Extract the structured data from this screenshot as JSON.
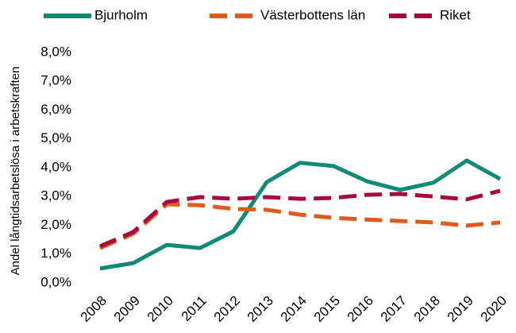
{
  "chart_data": {
    "type": "line",
    "y_label": "Andel långtidsarbetslösa i arbetskraften",
    "categories": [
      "2008",
      "2009",
      "2010",
      "2011",
      "2012",
      "2013",
      "2014",
      "2015",
      "2016",
      "2017",
      "2018",
      "2019",
      "2020"
    ],
    "series": [
      {
        "name": "Bjurholm",
        "color": "#118a76",
        "dash": false,
        "values": [
          0.5,
          0.69,
          1.32,
          1.21,
          1.79,
          3.5,
          4.17,
          4.06,
          3.53,
          3.23,
          3.48,
          4.25,
          3.61
        ]
      },
      {
        "name": "Västerbottens län",
        "color": "#e05a1a",
        "dash": true,
        "values": [
          1.21,
          1.71,
          2.73,
          2.7,
          2.57,
          2.54,
          2.37,
          2.26,
          2.2,
          2.15,
          2.1,
          1.99,
          2.1
        ]
      },
      {
        "name": "Riket",
        "color": "#a8083f",
        "dash": true,
        "values": [
          1.27,
          1.77,
          2.81,
          2.98,
          2.92,
          2.98,
          2.92,
          2.95,
          3.06,
          3.09,
          3.0,
          2.9,
          3.2
        ]
      }
    ],
    "ylim": [
      0,
      8
    ],
    "yticks": [
      {
        "value": 0,
        "label": "0,0%"
      },
      {
        "value": 1,
        "label": "1,0%"
      },
      {
        "value": 2,
        "label": "2,0%"
      },
      {
        "value": 3,
        "label": "3,0%"
      },
      {
        "value": 4,
        "label": "4,0%"
      },
      {
        "value": 5,
        "label": "5,0%"
      },
      {
        "value": 6,
        "label": "6,0%"
      },
      {
        "value": 7,
        "label": "7,0%"
      },
      {
        "value": 8,
        "label": "8,0%"
      }
    ],
    "legend": "top",
    "grid": false
  }
}
